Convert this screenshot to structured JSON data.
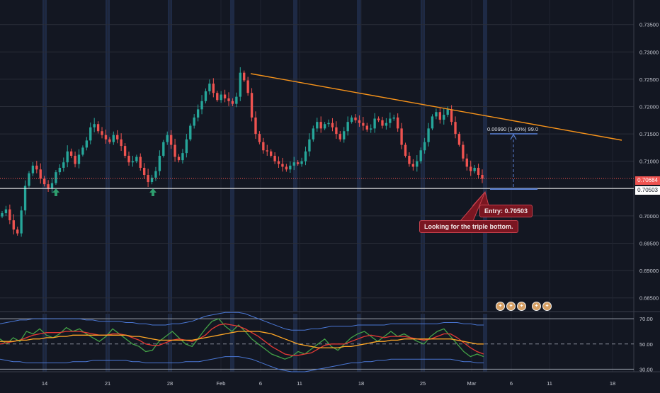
{
  "chart_data": [
    {
      "type": "candlestick",
      "title": "",
      "ylim": [
        0.6825,
        0.7395
      ],
      "price_axis_ticks": [
        "0.73500",
        "0.73000",
        "0.72500",
        "0.72000",
        "0.71500",
        "0.71000",
        "0.70500",
        "0.70000",
        "0.69500",
        "0.69000",
        "0.68500"
      ],
      "date_axis_labels": [
        "14",
        "21",
        "28",
        "Feb",
        "6",
        "11",
        "18",
        "25",
        "Mar",
        "6",
        "11",
        "18"
      ],
      "close_series": [
        0.7005,
        0.7012,
        0.6992,
        0.6975,
        0.6968,
        0.701,
        0.7055,
        0.7078,
        0.7092,
        0.7085,
        0.7068,
        0.7058,
        0.705,
        0.706,
        0.708,
        0.7088,
        0.7098,
        0.7118,
        0.711,
        0.7095,
        0.7112,
        0.7125,
        0.7138,
        0.7162,
        0.7168,
        0.7155,
        0.7148,
        0.714,
        0.7135,
        0.7148,
        0.714,
        0.7128,
        0.711,
        0.7098,
        0.71,
        0.7108,
        0.7088,
        0.7075,
        0.7062,
        0.707,
        0.7082,
        0.711,
        0.7135,
        0.7148,
        0.713,
        0.7108,
        0.7102,
        0.7115,
        0.714,
        0.7165,
        0.718,
        0.7195,
        0.721,
        0.7228,
        0.7242,
        0.7225,
        0.7212,
        0.7222,
        0.7215,
        0.721,
        0.7205,
        0.7218,
        0.7262,
        0.7248,
        0.7225,
        0.718,
        0.715,
        0.7135,
        0.712,
        0.7118,
        0.711,
        0.71,
        0.7095,
        0.709,
        0.7085,
        0.7092,
        0.7098,
        0.7095,
        0.71,
        0.7118,
        0.714,
        0.716,
        0.7172,
        0.716,
        0.7168,
        0.717,
        0.7162,
        0.715,
        0.714,
        0.7155,
        0.7172,
        0.718,
        0.7175,
        0.717,
        0.7165,
        0.7158,
        0.716,
        0.7178,
        0.7175,
        0.7165,
        0.717,
        0.7178,
        0.718,
        0.716,
        0.713,
        0.711,
        0.7095,
        0.709,
        0.71,
        0.712,
        0.7135,
        0.716,
        0.7182,
        0.719,
        0.7176,
        0.7185,
        0.7195,
        0.7172,
        0.715,
        0.713,
        0.7105,
        0.709,
        0.7082,
        0.7088,
        0.7075,
        0.7068
      ],
      "last_price": "0.70684",
      "support_level": "0.70503",
      "measure_label": "0.00990 (1.40%) 99.0",
      "annotations": {
        "entry": "Entry: 0.70503",
        "note": "Looking for the triple bottom."
      },
      "colors": {
        "up": "#26a69a",
        "down": "#ef5350",
        "trendline": "#f7931a",
        "support": "#ffffff",
        "measure": "#5b82d6",
        "background": "#131722"
      }
    },
    {
      "type": "line",
      "title": "",
      "ylim": [
        28,
        74
      ],
      "tick_labels": [
        "70.00",
        "50.00",
        "30.00"
      ],
      "levels": [
        70,
        50,
        30
      ],
      "series": [
        {
          "name": "",
          "color": "#43a047",
          "values": [
            54,
            50,
            55,
            52,
            60,
            58,
            62,
            57,
            55,
            58,
            63,
            60,
            62,
            58,
            55,
            52,
            56,
            62,
            58,
            54,
            50,
            48,
            44,
            45,
            52,
            56,
            60,
            55,
            50,
            48,
            55,
            62,
            68,
            70,
            64,
            60,
            65,
            60,
            54,
            50,
            46,
            42,
            40,
            38,
            40,
            44,
            42,
            46,
            50,
            54,
            48,
            45,
            50,
            55,
            58,
            60,
            56,
            52,
            56,
            60,
            56,
            58,
            55,
            52,
            50,
            56,
            60,
            62,
            56,
            50,
            44,
            40,
            42,
            40
          ]
        },
        {
          "name": "",
          "color": "#e53935",
          "values": [
            50,
            51,
            52,
            53,
            55,
            57,
            58,
            59,
            59,
            59,
            60,
            60,
            60,
            59,
            58,
            57,
            57,
            58,
            58,
            57,
            55,
            53,
            50,
            49,
            49,
            51,
            53,
            54,
            53,
            52,
            54,
            57,
            62,
            65,
            66,
            65,
            64,
            62,
            59,
            56,
            52,
            48,
            45,
            42,
            41,
            41,
            42,
            43,
            46,
            49,
            50,
            50,
            50,
            52,
            54,
            56,
            57,
            56,
            55,
            56,
            56,
            56,
            55,
            54,
            53,
            54,
            56,
            58,
            58,
            55,
            51,
            47,
            44,
            42
          ]
        },
        {
          "name": "",
          "color": "#ffa726",
          "values": [
            52,
            52,
            52,
            53,
            53,
            54,
            54,
            55,
            55,
            56,
            56,
            57,
            57,
            57,
            57,
            57,
            57,
            57,
            57,
            57,
            56,
            56,
            55,
            54,
            53,
            53,
            53,
            53,
            53,
            53,
            54,
            55,
            56,
            57,
            58,
            59,
            60,
            60,
            60,
            60,
            59,
            58,
            56,
            54,
            52,
            50,
            49,
            48,
            47,
            47,
            47,
            47,
            48,
            48,
            49,
            50,
            51,
            52,
            52,
            53,
            53,
            54,
            54,
            54,
            54,
            54,
            54,
            54,
            54,
            53,
            52,
            51,
            50,
            50
          ]
        },
        {
          "name": "",
          "color": "#4a77d4",
          "values": [
            66,
            67,
            68,
            69,
            69,
            70,
            70,
            70,
            70,
            70,
            70,
            70,
            70,
            69,
            69,
            68,
            68,
            68,
            68,
            67,
            67,
            66,
            66,
            65,
            65,
            65,
            66,
            66,
            67,
            68,
            70,
            72,
            73,
            74,
            75,
            75,
            75,
            74,
            72,
            70,
            68,
            66,
            64,
            62,
            61,
            61,
            61,
            62,
            62,
            63,
            64,
            64,
            64,
            64,
            65,
            65,
            65,
            65,
            65,
            66,
            66,
            66,
            66,
            66,
            66,
            66,
            66,
            67,
            67,
            67,
            66,
            66,
            65,
            65
          ]
        },
        {
          "name": "",
          "color": "#4a77d4",
          "values": [
            38,
            37,
            36,
            36,
            35,
            35,
            35,
            35,
            35,
            35,
            35,
            36,
            36,
            36,
            37,
            37,
            37,
            37,
            37,
            37,
            36,
            36,
            35,
            35,
            35,
            35,
            35,
            35,
            36,
            36,
            36,
            37,
            38,
            39,
            40,
            40,
            40,
            39,
            38,
            36,
            34,
            32,
            30,
            29,
            28,
            28,
            28,
            29,
            30,
            31,
            32,
            33,
            34,
            35,
            35,
            36,
            36,
            37,
            37,
            38,
            38,
            38,
            38,
            38,
            38,
            38,
            38,
            38,
            38,
            37,
            36,
            36,
            35,
            35
          ]
        }
      ]
    }
  ]
}
